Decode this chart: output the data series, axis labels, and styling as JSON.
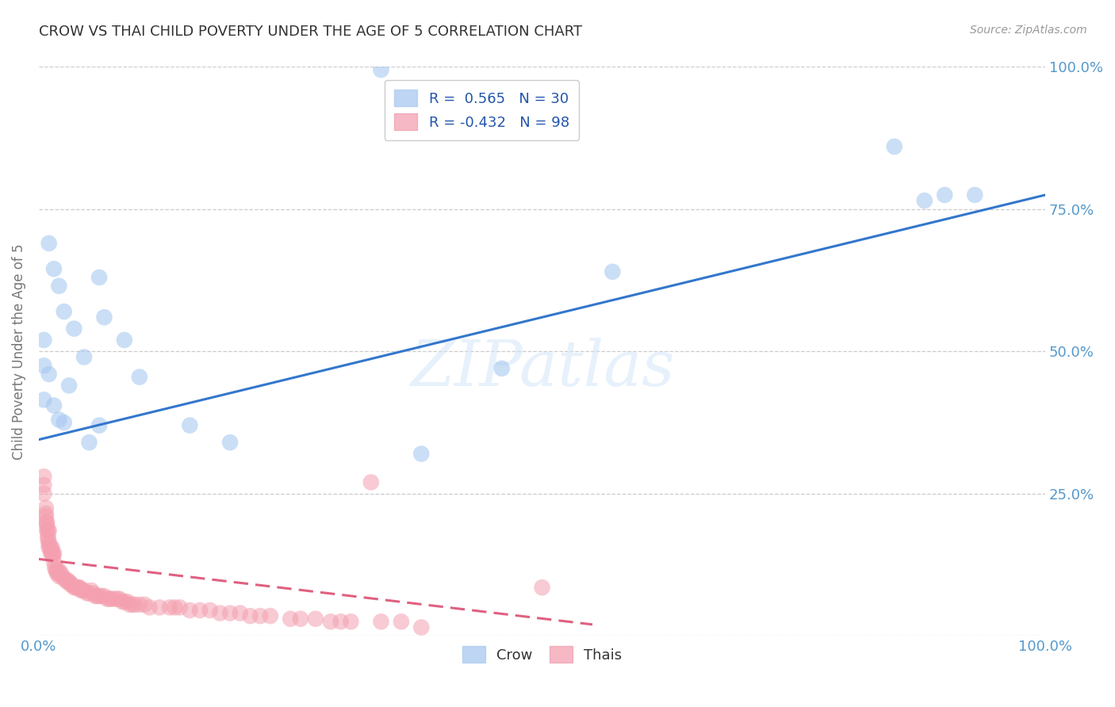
{
  "title": "CROW VS THAI CHILD POVERTY UNDER THE AGE OF 5 CORRELATION CHART",
  "source": "Source: ZipAtlas.com",
  "ylabel": "Child Poverty Under the Age of 5",
  "watermark": "ZIPatlas",
  "background_color": "#ffffff",
  "plot_background": "#ffffff",
  "grid_color": "#cccccc",
  "crow_color": "#a8c8f0",
  "thais_color": "#f4a0b0",
  "crow_line_color": "#3377cc",
  "thais_line_color": "#e06080",
  "axis_tick_color": "#5599cc",
  "crow_R": 0.565,
  "thais_R": -0.432,
  "crow_N": 30,
  "thais_N": 98,
  "xlim": [
    0,
    1
  ],
  "ylim": [
    0,
    1
  ],
  "crow_scatter_x": [
    0.34,
    0.01,
    0.015,
    0.02,
    0.025,
    0.005,
    0.005,
    0.01,
    0.005,
    0.015,
    0.02,
    0.025,
    0.06,
    0.065,
    0.085,
    0.1,
    0.15,
    0.19,
    0.06,
    0.05,
    0.045,
    0.035,
    0.03,
    0.88,
    0.9,
    0.93,
    0.85,
    0.57,
    0.38,
    0.46
  ],
  "crow_scatter_y": [
    0.995,
    0.69,
    0.645,
    0.615,
    0.57,
    0.52,
    0.475,
    0.46,
    0.415,
    0.405,
    0.38,
    0.375,
    0.63,
    0.56,
    0.52,
    0.455,
    0.37,
    0.34,
    0.37,
    0.34,
    0.49,
    0.54,
    0.44,
    0.765,
    0.775,
    0.775,
    0.86,
    0.64,
    0.32,
    0.47
  ],
  "thais_scatter_x": [
    0.005,
    0.005,
    0.005,
    0.007,
    0.007,
    0.007,
    0.007,
    0.008,
    0.008,
    0.008,
    0.009,
    0.009,
    0.009,
    0.01,
    0.01,
    0.01,
    0.01,
    0.012,
    0.012,
    0.012,
    0.013,
    0.013,
    0.014,
    0.014,
    0.015,
    0.015,
    0.016,
    0.017,
    0.018,
    0.018,
    0.02,
    0.02,
    0.02,
    0.022,
    0.023,
    0.025,
    0.027,
    0.028,
    0.03,
    0.03,
    0.032,
    0.033,
    0.035,
    0.037,
    0.038,
    0.04,
    0.04,
    0.042,
    0.043,
    0.045,
    0.048,
    0.05,
    0.052,
    0.054,
    0.056,
    0.058,
    0.06,
    0.062,
    0.065,
    0.068,
    0.07,
    0.072,
    0.075,
    0.078,
    0.08,
    0.083,
    0.085,
    0.088,
    0.09,
    0.093,
    0.095,
    0.1,
    0.105,
    0.11,
    0.12,
    0.13,
    0.135,
    0.14,
    0.15,
    0.16,
    0.17,
    0.18,
    0.19,
    0.2,
    0.21,
    0.22,
    0.23,
    0.25,
    0.26,
    0.275,
    0.29,
    0.3,
    0.31,
    0.33,
    0.34,
    0.36,
    0.38,
    0.5
  ],
  "thais_scatter_y": [
    0.28,
    0.265,
    0.25,
    0.225,
    0.215,
    0.21,
    0.2,
    0.2,
    0.195,
    0.185,
    0.185,
    0.175,
    0.17,
    0.185,
    0.165,
    0.16,
    0.155,
    0.155,
    0.15,
    0.145,
    0.155,
    0.145,
    0.145,
    0.14,
    0.145,
    0.13,
    0.12,
    0.115,
    0.115,
    0.11,
    0.115,
    0.11,
    0.105,
    0.11,
    0.105,
    0.1,
    0.1,
    0.095,
    0.095,
    0.095,
    0.09,
    0.09,
    0.085,
    0.085,
    0.085,
    0.085,
    0.085,
    0.08,
    0.08,
    0.08,
    0.075,
    0.075,
    0.08,
    0.075,
    0.07,
    0.07,
    0.07,
    0.07,
    0.07,
    0.065,
    0.065,
    0.065,
    0.065,
    0.065,
    0.065,
    0.06,
    0.06,
    0.06,
    0.055,
    0.055,
    0.055,
    0.055,
    0.055,
    0.05,
    0.05,
    0.05,
    0.05,
    0.05,
    0.045,
    0.045,
    0.045,
    0.04,
    0.04,
    0.04,
    0.035,
    0.035,
    0.035,
    0.03,
    0.03,
    0.03,
    0.025,
    0.025,
    0.025,
    0.27,
    0.025,
    0.025,
    0.015,
    0.085
  ],
  "crow_trendline_x": [
    0.0,
    1.0
  ],
  "crow_trendline_y": [
    0.345,
    0.775
  ],
  "thais_trendline_x": [
    0.0,
    0.55
  ],
  "thais_trendline_y": [
    0.135,
    0.02
  ]
}
